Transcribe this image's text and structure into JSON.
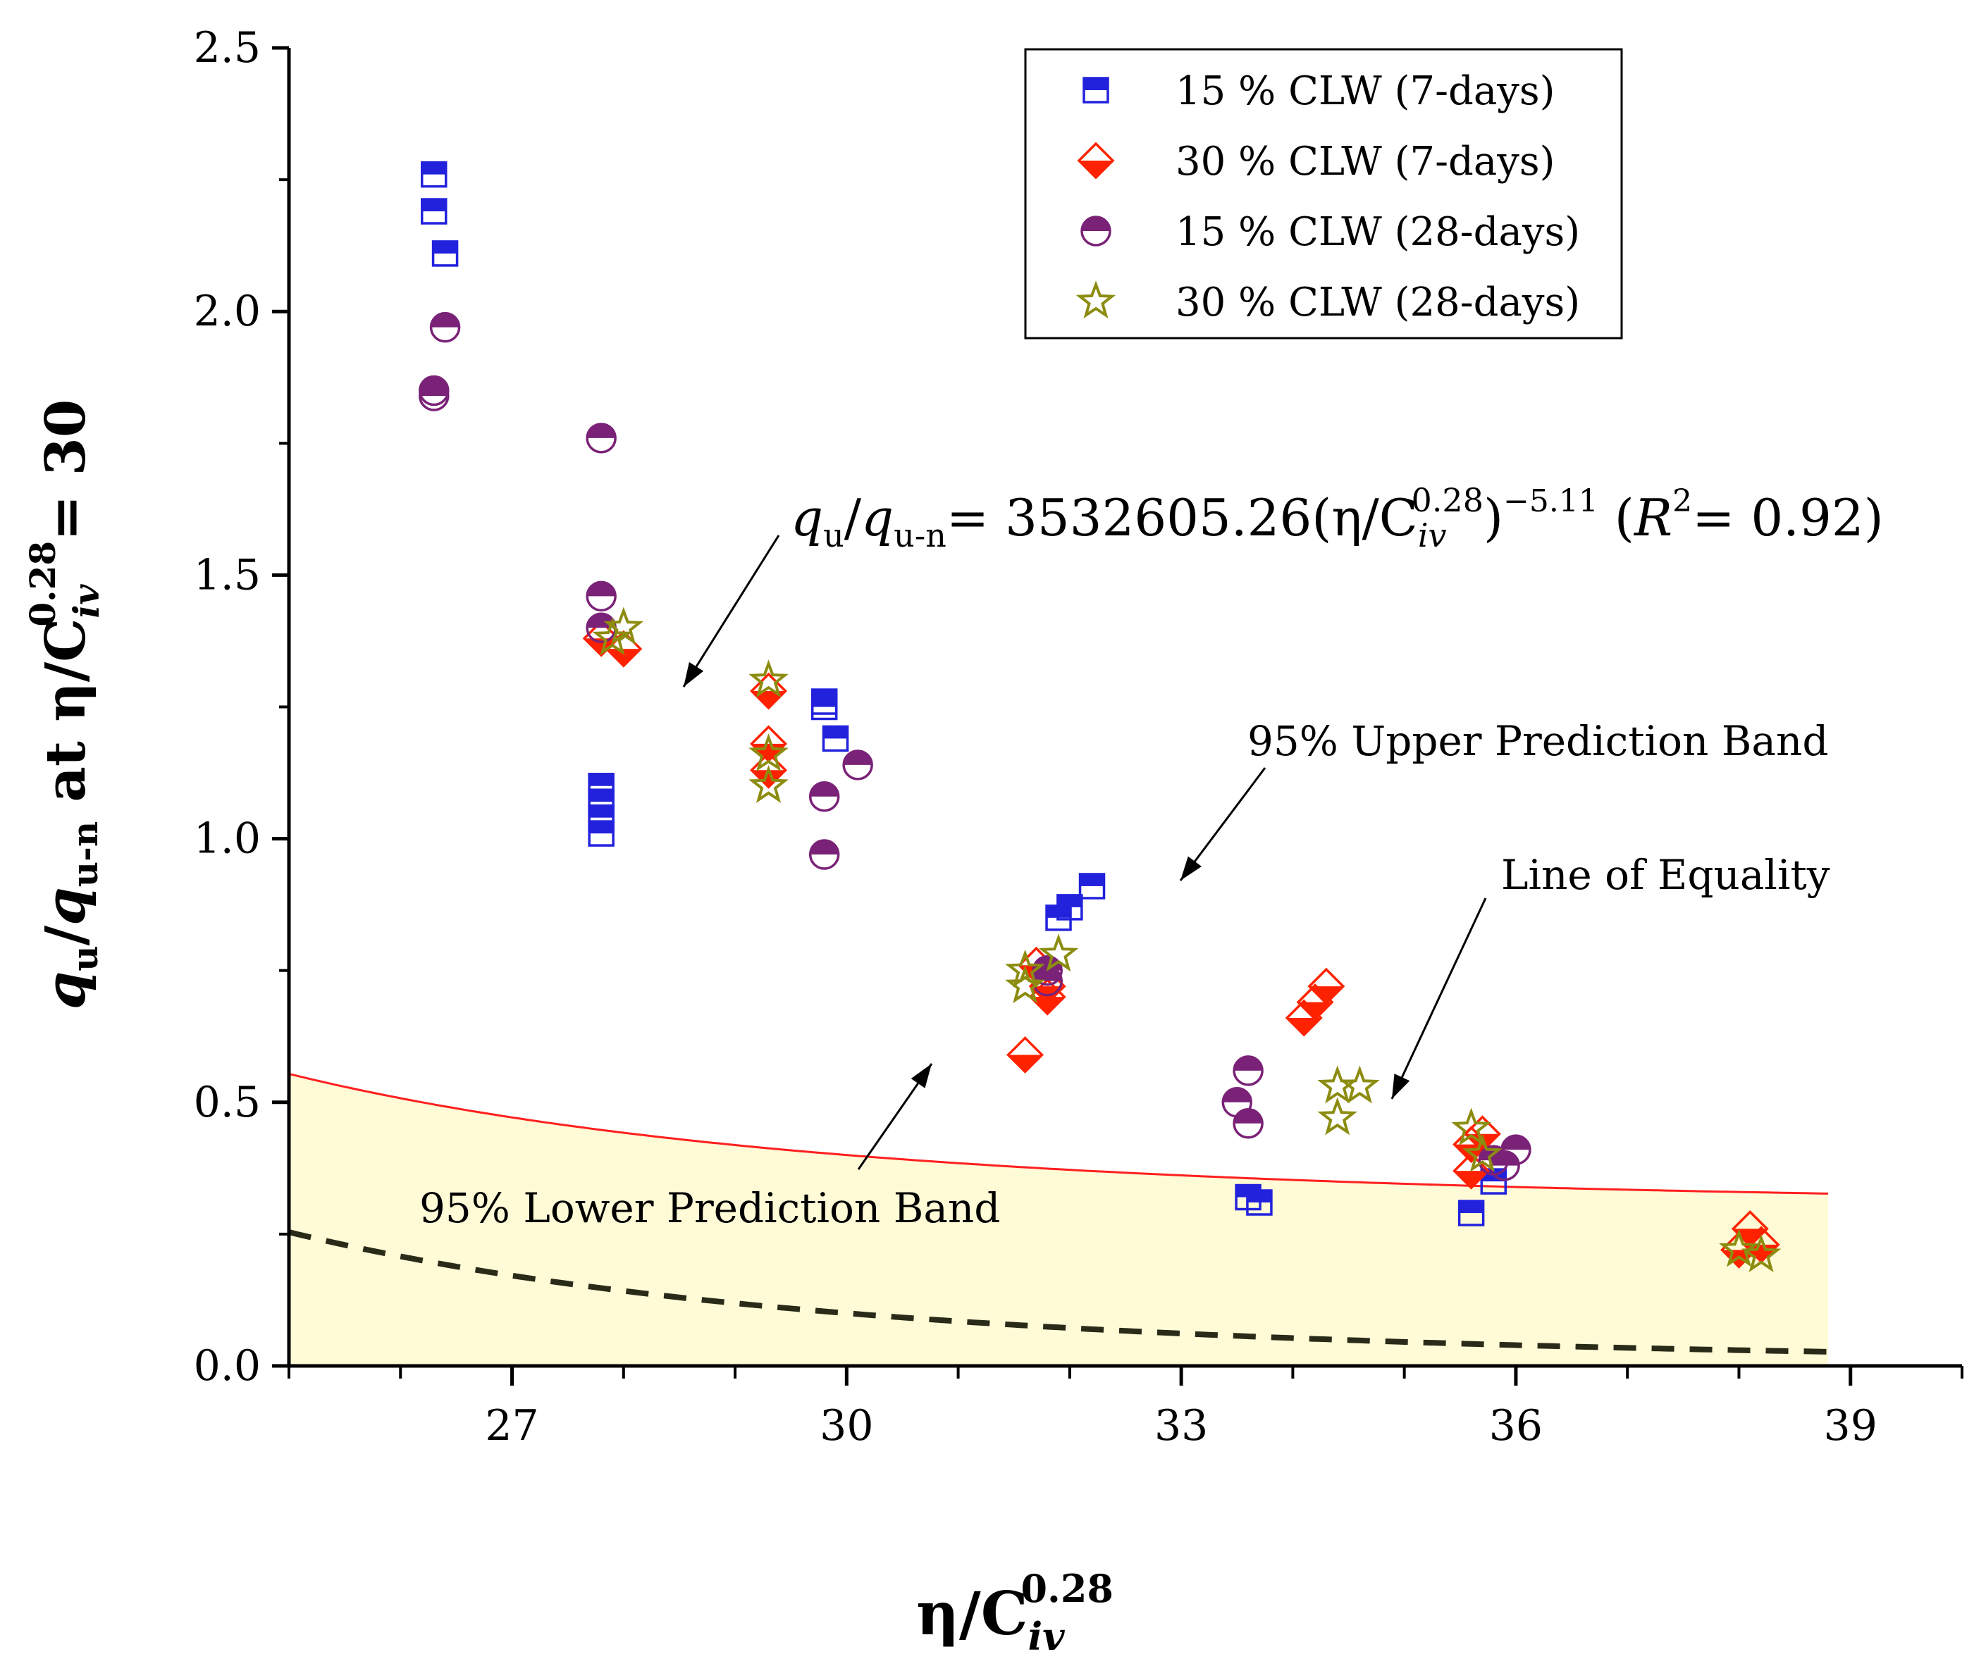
{
  "chart_data": {
    "type": "scatter",
    "xlim": [
      25,
      40
    ],
    "ylim": [
      0,
      2.5
    ],
    "xticks_labeled": [
      27,
      30,
      33,
      36,
      39
    ],
    "xticks_minor": [
      25,
      26,
      28,
      29,
      31,
      32,
      34,
      35,
      37,
      38,
      40
    ],
    "yticks": [
      "0.0",
      "0.5",
      "1.0",
      "1.5",
      "2.0",
      "2.5"
    ],
    "yticks_minor": [
      0.25,
      0.75,
      1.25,
      1.75,
      2.25
    ],
    "xlabel": {
      "base": "η/C",
      "sub": "iv",
      "sup": "0.28"
    },
    "ylabel": {
      "q1": "q",
      "s1": "u",
      "slash": "/",
      "q2": "q",
      "s2": "u-n",
      "mid": " at η/C",
      "sub": "iv",
      "sup": "0.28",
      "end": "= 30"
    },
    "grid": false,
    "legend_position": "top-right",
    "fit": {
      "a": 3532605.26,
      "b": -5.11
    },
    "x_range_curves": [
      25,
      38.8
    ],
    "band": {
      "upper_offset": 0.3,
      "lower_offset": -0.28
    },
    "equation": {
      "p1": "q",
      "p1s": "u",
      "p2": "/",
      "p3": "q",
      "p3s": "u-n",
      "p4": "= 3532605.26(η/C",
      "p4sub": "iv",
      "p4sup": "0.28",
      "p5": ")",
      "p5sup": "−5.11",
      "p6": " (",
      "p6r": "R",
      "p6sup": "2",
      "p7": "= 0.92)"
    },
    "annotations": {
      "upper": "95% Upper Prediction Band",
      "lower": "95% Lower Prediction Band",
      "equality": "Line of Equality"
    },
    "series": [
      {
        "name": "15 % CLW (7-days)",
        "marker": "square",
        "color": "#2222dd",
        "points": [
          [
            26.3,
            2.26
          ],
          [
            26.3,
            2.19
          ],
          [
            26.4,
            2.11
          ],
          [
            27.8,
            1.1
          ],
          [
            27.8,
            1.07
          ],
          [
            27.8,
            1.04
          ],
          [
            27.8,
            1.01
          ],
          [
            29.8,
            1.26
          ],
          [
            29.8,
            1.25
          ],
          [
            29.9,
            1.19
          ],
          [
            31.9,
            0.85
          ],
          [
            32.0,
            0.87
          ],
          [
            32.2,
            0.91
          ],
          [
            33.6,
            0.32
          ],
          [
            33.7,
            0.31
          ],
          [
            35.6,
            0.29
          ],
          [
            35.8,
            0.35
          ]
        ]
      },
      {
        "name": "30 % CLW (7-days)",
        "marker": "diamond",
        "color": "#ff2200",
        "points": [
          [
            27.8,
            1.38
          ],
          [
            28.0,
            1.36
          ],
          [
            29.3,
            1.28
          ],
          [
            29.3,
            1.18
          ],
          [
            29.3,
            1.13
          ],
          [
            31.7,
            0.76
          ],
          [
            31.8,
            0.72
          ],
          [
            31.8,
            0.7
          ],
          [
            31.6,
            0.59
          ],
          [
            34.1,
            0.66
          ],
          [
            34.2,
            0.69
          ],
          [
            34.3,
            0.72
          ],
          [
            35.6,
            0.37
          ],
          [
            35.6,
            0.42
          ],
          [
            35.7,
            0.44
          ],
          [
            38.0,
            0.22
          ],
          [
            38.1,
            0.26
          ],
          [
            38.2,
            0.23
          ]
        ]
      },
      {
        "name": "15 % CLW (28-days)",
        "marker": "circle",
        "color": "#7a2277",
        "points": [
          [
            26.3,
            1.85
          ],
          [
            26.3,
            1.84
          ],
          [
            26.4,
            1.97
          ],
          [
            27.8,
            1.76
          ],
          [
            27.8,
            1.46
          ],
          [
            27.8,
            1.4
          ],
          [
            29.8,
            1.08
          ],
          [
            29.8,
            0.97
          ],
          [
            30.1,
            1.14
          ],
          [
            31.8,
            0.75
          ],
          [
            31.8,
            0.73
          ],
          [
            33.5,
            0.5
          ],
          [
            33.6,
            0.56
          ],
          [
            33.6,
            0.46
          ],
          [
            35.8,
            0.39
          ],
          [
            35.9,
            0.38
          ],
          [
            36.0,
            0.41
          ]
        ]
      },
      {
        "name": "30 % CLW (28-days)",
        "marker": "star",
        "color": "#8c8c10",
        "points": [
          [
            27.9,
            1.38
          ],
          [
            28.0,
            1.4
          ],
          [
            29.3,
            1.3
          ],
          [
            29.3,
            1.16
          ],
          [
            29.3,
            1.1
          ],
          [
            31.6,
            0.75
          ],
          [
            31.6,
            0.72
          ],
          [
            31.9,
            0.78
          ],
          [
            34.4,
            0.47
          ],
          [
            34.4,
            0.53
          ],
          [
            34.6,
            0.53
          ],
          [
            35.6,
            0.45
          ],
          [
            35.7,
            0.4
          ],
          [
            38.0,
            0.22
          ],
          [
            38.2,
            0.21
          ]
        ]
      }
    ]
  }
}
